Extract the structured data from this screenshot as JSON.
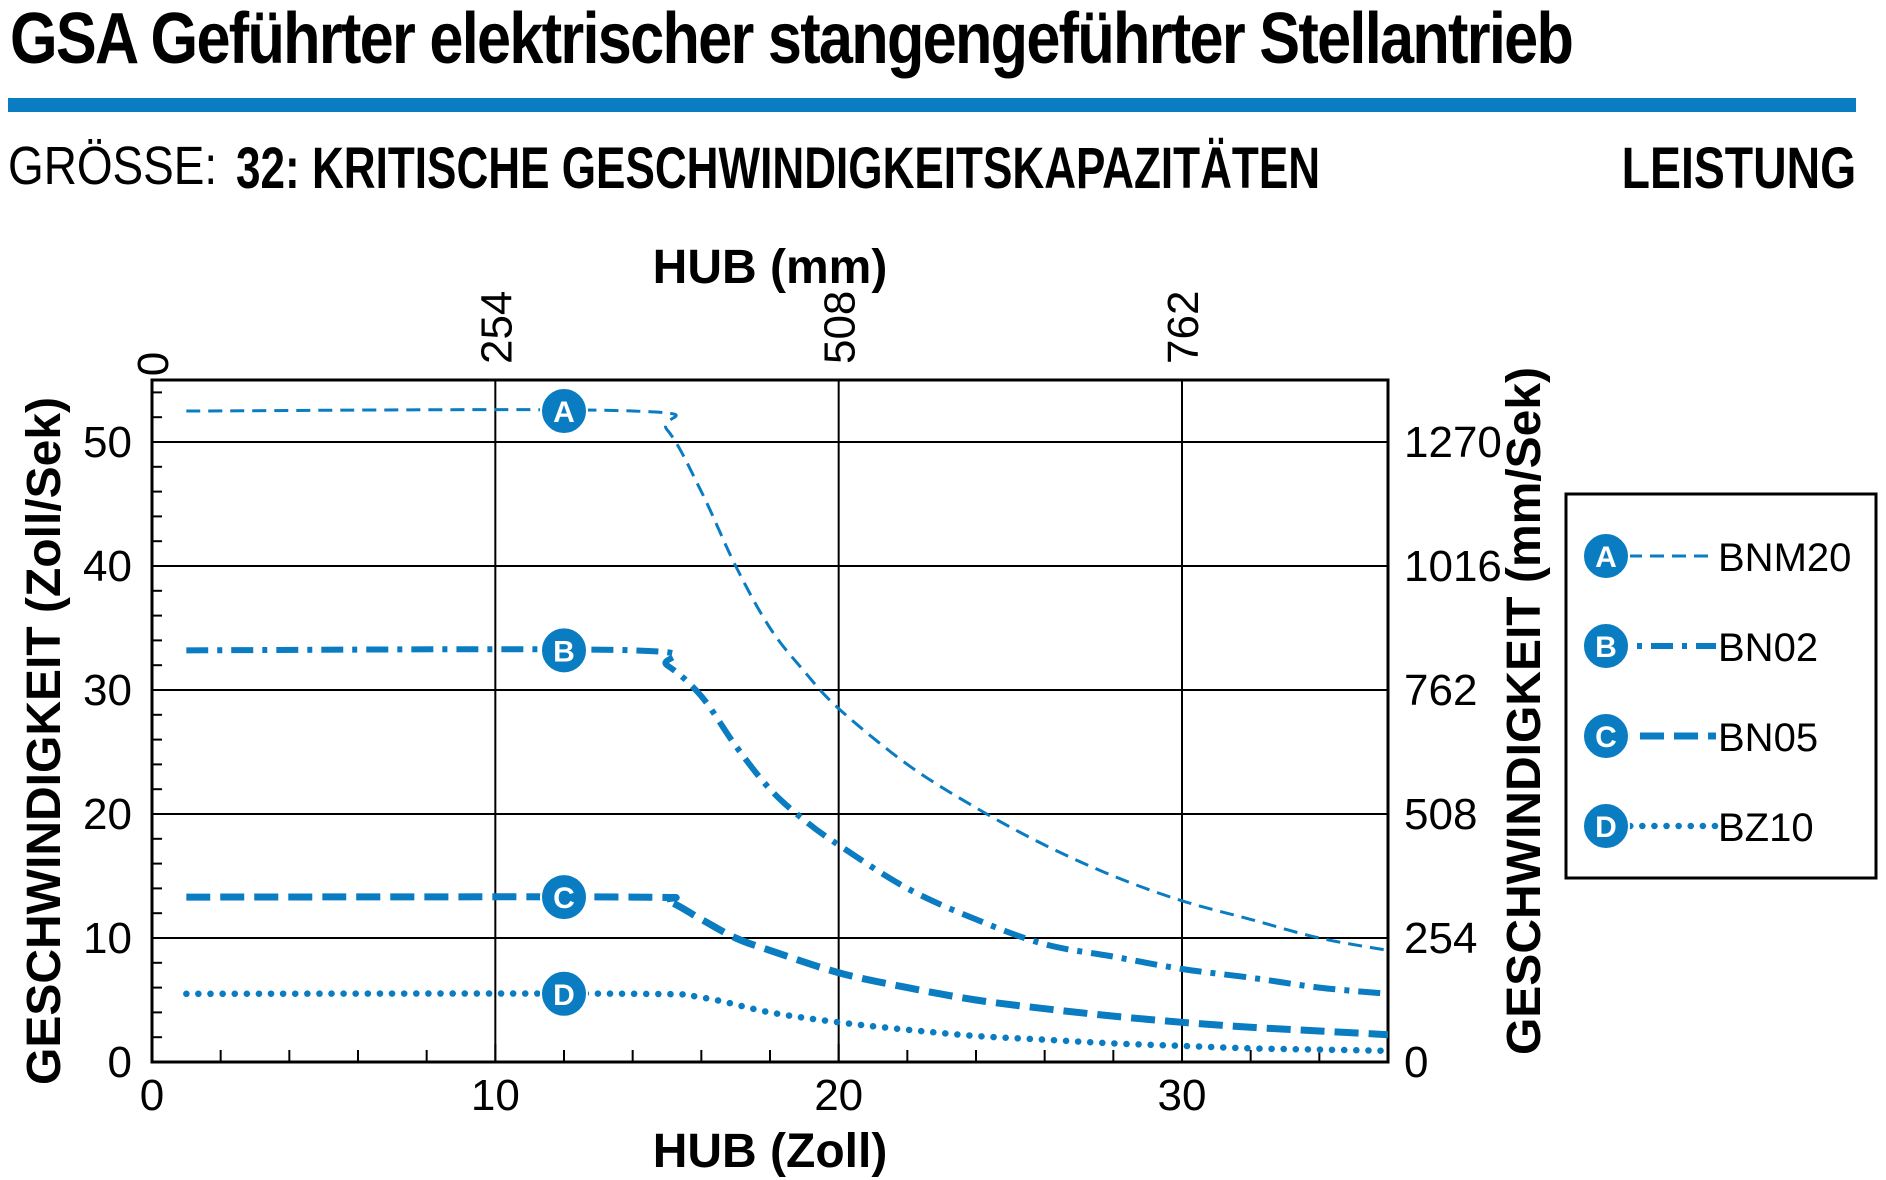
{
  "header": {
    "title": "GSA Geführter elektrischer stangengeführter Stellantrieb",
    "size_label": "GRÖSSE:",
    "size_value": "32: KRITISCHE GESCHWINDIGKEITSKAPAZITÄTEN",
    "section": "LEISTUNG"
  },
  "colors": {
    "accent": "#0a7cc1",
    "grid": "#000000"
  },
  "chart_data": {
    "type": "line",
    "xlabel": "HUB (Zoll)",
    "x2label": "HUB (mm)",
    "ylabel": "GESCHWINDIGKEIT (Zoll/Sek)",
    "y2label": "GESCHWINDIGKEIT (mm/Sek)",
    "xlim": [
      0,
      36
    ],
    "ylim": [
      0,
      55
    ],
    "x_ticks": [
      "0",
      "10",
      "20",
      "30"
    ],
    "y_ticks": [
      "0",
      "10",
      "20",
      "30",
      "40",
      "50"
    ],
    "x2_ticks": [
      "0",
      "254",
      "508",
      "762"
    ],
    "y2_ticks": [
      "0",
      "254",
      "508",
      "762",
      "1016",
      "1270"
    ],
    "grid": true,
    "legend_position": "right",
    "series": [
      {
        "name": "BNM20",
        "marker": "A",
        "style": "dashed",
        "x": [
          1,
          14,
          15,
          16,
          17,
          18,
          19,
          20,
          22,
          24,
          26,
          28,
          30,
          32,
          34,
          36
        ],
        "y": [
          52.5,
          52.5,
          51,
          46,
          40,
          35,
          31.5,
          28.5,
          24,
          20.5,
          17.5,
          15,
          13,
          11.5,
          10,
          9
        ]
      },
      {
        "name": "BN02",
        "marker": "B",
        "style": "dash-dot",
        "x": [
          1,
          14,
          15,
          16,
          17,
          18,
          19,
          20,
          22,
          24,
          26,
          28,
          30,
          32,
          34,
          36
        ],
        "y": [
          33.2,
          33.2,
          32,
          29.5,
          25.5,
          22,
          19.5,
          17.5,
          14,
          11.5,
          9.5,
          8.5,
          7.5,
          6.8,
          6,
          5.5
        ]
      },
      {
        "name": "BN05",
        "marker": "C",
        "style": "thick-dashed",
        "x": [
          1,
          14,
          15,
          16,
          17,
          18,
          20,
          22,
          24,
          26,
          28,
          30,
          32,
          34,
          36
        ],
        "y": [
          13.3,
          13.3,
          13,
          11.5,
          10,
          9,
          7.2,
          6,
          5,
          4.3,
          3.7,
          3.2,
          2.8,
          2.5,
          2.2
        ]
      },
      {
        "name": "BZ10",
        "marker": "D",
        "style": "dotted",
        "x": [
          1,
          14,
          16,
          18,
          20,
          22,
          24,
          26,
          28,
          30,
          32,
          34,
          36
        ],
        "y": [
          5.5,
          5.5,
          5.2,
          4,
          3.2,
          2.6,
          2.1,
          1.8,
          1.5,
          1.3,
          1.1,
          1,
          0.9
        ]
      }
    ]
  }
}
